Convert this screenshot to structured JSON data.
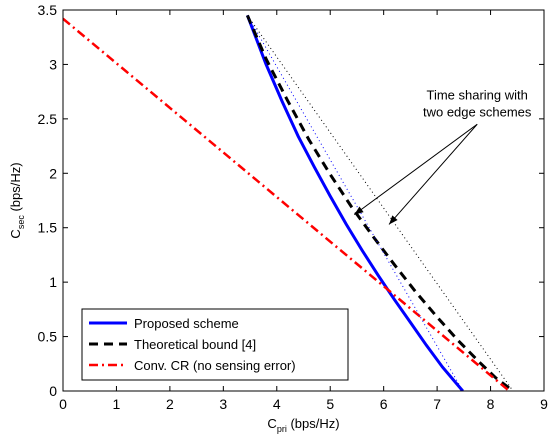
{
  "chart_data": {
    "type": "line",
    "xlabel": {
      "main": "C",
      "sub": "pri",
      "unit": " (bps/Hz)"
    },
    "ylabel": {
      "main": "C",
      "sub": "sec",
      "unit": " (bps/Hz)"
    },
    "xlim": [
      0,
      9
    ],
    "ylim": [
      0,
      3.5
    ],
    "xticks": [
      0,
      1,
      2,
      3,
      4,
      5,
      6,
      7,
      8,
      9
    ],
    "xtick_labels": [
      "0",
      "1",
      "2",
      "3",
      "4",
      "5",
      "6",
      "7",
      "8",
      "9"
    ],
    "yticks": [
      0,
      0.5,
      1,
      1.5,
      2,
      2.5,
      3,
      3.5
    ],
    "ytick_labels": [
      "0",
      "0.5",
      "1",
      "1.5",
      "2",
      "2.5",
      "3",
      "3.5"
    ],
    "grid": false,
    "legend_position": "bottom-left",
    "series": [
      {
        "name": "Proposed scheme",
        "color": "#0000ff",
        "style": "solid",
        "in_legend": true,
        "x": [
          3.45,
          3.8,
          4.1,
          4.4,
          4.7,
          5.0,
          5.3,
          5.6,
          5.9,
          6.2,
          6.5,
          6.8,
          7.1,
          7.48
        ],
        "y": [
          3.45,
          3.0,
          2.66,
          2.34,
          2.06,
          1.79,
          1.53,
          1.29,
          1.06,
          0.84,
          0.63,
          0.42,
          0.22,
          0.0
        ]
      },
      {
        "name": "Theoretical bound [4]",
        "color": "#000000",
        "style": "dashed",
        "in_legend": true,
        "x": [
          3.45,
          3.8,
          4.2,
          4.6,
          5.0,
          5.4,
          5.8,
          6.2,
          6.6,
          7.0,
          7.4,
          7.8,
          8.1,
          8.42
        ],
        "y": [
          3.45,
          3.05,
          2.67,
          2.31,
          1.99,
          1.69,
          1.42,
          1.16,
          0.91,
          0.68,
          0.46,
          0.26,
          0.12,
          0.0
        ]
      },
      {
        "name": "Conv. CR (no sensing error)",
        "color": "#ff0000",
        "style": "dashdot",
        "in_legend": true,
        "x": [
          0,
          8.35
        ],
        "y": [
          3.42,
          0
        ]
      },
      {
        "name": "",
        "color": "#0000ff",
        "style": "dotted",
        "in_legend": false,
        "x": [
          3.45,
          7.48
        ],
        "y": [
          3.45,
          0
        ]
      },
      {
        "name": "",
        "color": "#000000",
        "style": "dotted",
        "in_legend": false,
        "x": [
          3.45,
          8.42
        ],
        "y": [
          3.45,
          0
        ]
      }
    ],
    "annotations": [
      {
        "lines": [
          "Time sharing with",
          "two edge schemes"
        ],
        "text_at": [
          7.75,
          2.68
        ],
        "arrows_to": [
          [
            5.45,
            1.62
          ],
          [
            6.1,
            1.53
          ]
        ]
      }
    ]
  }
}
